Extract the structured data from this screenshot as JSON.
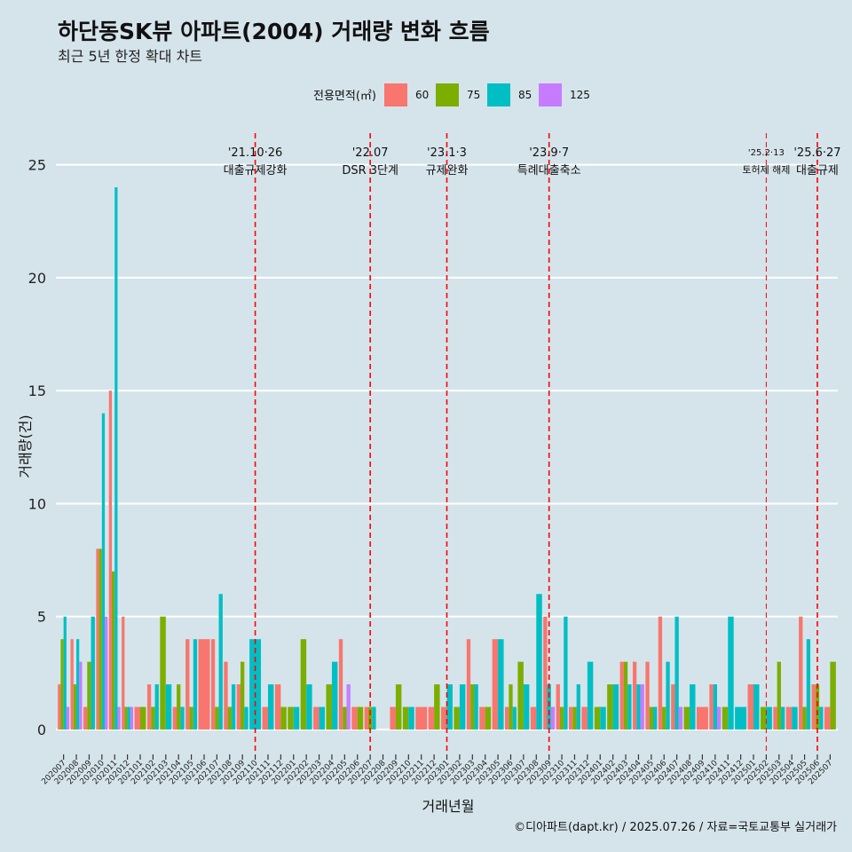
{
  "chart_data": {
    "type": "bar",
    "title": "하단동SK뷰 아파트(2004) 거래량 변화 흐름",
    "subtitle": "최근 5년 한정 확대 차트",
    "xlabel": "거래년월",
    "ylabel": "거래량(건)",
    "caption": "©디아파트(dapt.kr) / 2025.07.26 / 자료=국토교통부 실거래가",
    "ylim": [
      -1.1,
      26.4
    ],
    "yticks": [
      0,
      5,
      10,
      15,
      20,
      25
    ],
    "grid": "horizontal",
    "legend": {
      "title": "전용면적(㎡)",
      "position": "top"
    },
    "categories": [
      "202007",
      "202008",
      "202009",
      "202010",
      "202011",
      "202012",
      "202101",
      "202102",
      "202103",
      "202104",
      "202105",
      "202106",
      "202107",
      "202108",
      "202109",
      "202110",
      "202111",
      "202112",
      "202201",
      "202202",
      "202203",
      "202204",
      "202205",
      "202206",
      "202207",
      "202208",
      "202209",
      "202210",
      "202211",
      "202212",
      "202301",
      "202302",
      "202303",
      "202304",
      "202305",
      "202306",
      "202307",
      "202308",
      "202309",
      "202310",
      "202311",
      "202312",
      "202401",
      "202402",
      "202403",
      "202404",
      "202405",
      "202406",
      "202407",
      "202408",
      "202409",
      "202410",
      "202411",
      "202412",
      "202501",
      "202502",
      "202503",
      "202504",
      "202505",
      "202506",
      "202507"
    ],
    "series": [
      {
        "name": "60",
        "color": "#F8766D",
        "values": [
          2,
          4,
          1,
          8,
          15,
          5,
          1,
          2,
          0,
          1,
          4,
          4,
          4,
          3,
          2,
          0,
          1,
          2,
          0,
          0,
          1,
          0,
          4,
          1,
          1,
          0,
          1,
          0,
          1,
          1,
          1,
          0,
          4,
          1,
          4,
          1,
          0,
          1,
          5,
          2,
          1,
          1,
          0,
          0,
          3,
          3,
          3,
          5,
          2,
          0,
          1,
          2,
          0,
          0,
          2,
          0,
          1,
          1,
          5,
          2,
          1
        ]
      },
      {
        "name": "75",
        "color": "#7CAE00",
        "values": [
          4,
          2,
          3,
          8,
          7,
          1,
          1,
          1,
          5,
          2,
          1,
          0,
          1,
          1,
          3,
          0,
          0,
          1,
          1,
          4,
          0,
          2,
          1,
          1,
          1,
          0,
          2,
          1,
          0,
          2,
          0,
          1,
          2,
          1,
          0,
          2,
          3,
          0,
          0,
          1,
          1,
          0,
          1,
          2,
          3,
          0,
          1,
          1,
          0,
          1,
          0,
          0,
          1,
          0,
          0,
          1,
          3,
          0,
          1,
          2,
          3
        ]
      },
      {
        "name": "85",
        "color": "#00BFC4",
        "values": [
          5,
          4,
          5,
          14,
          24,
          1,
          0,
          2,
          2,
          1,
          4,
          0,
          6,
          2,
          1,
          4,
          2,
          0,
          1,
          2,
          1,
          3,
          0,
          0,
          1,
          0,
          0,
          1,
          0,
          0,
          2,
          2,
          2,
          0,
          4,
          1,
          2,
          6,
          2,
          5,
          2,
          3,
          1,
          2,
          2,
          2,
          1,
          3,
          5,
          2,
          0,
          2,
          5,
          1,
          2,
          1,
          1,
          1,
          4,
          1,
          0
        ]
      },
      {
        "name": "125",
        "color": "#C77CFF",
        "values": [
          1,
          3,
          0,
          5,
          1,
          1,
          0,
          0,
          0,
          0,
          0,
          0,
          0,
          0,
          0,
          0,
          0,
          0,
          0,
          0,
          0,
          0,
          2,
          0,
          0,
          0,
          0,
          0,
          0,
          0,
          0,
          0,
          0,
          0,
          0,
          0,
          0,
          0,
          1,
          0,
          0,
          0,
          0,
          0,
          0,
          2,
          0,
          0,
          1,
          0,
          0,
          1,
          0,
          0,
          0,
          0,
          0,
          0,
          0,
          0,
          0
        ]
      }
    ],
    "annotations": [
      {
        "x": "202110",
        "date": "'21.10·26",
        "label": "대출규제강화",
        "style": "normal"
      },
      {
        "x": "202207",
        "date": "'22.07",
        "label": "DSR 3단계",
        "style": "normal"
      },
      {
        "x": "202301",
        "date": "'23.1·3",
        "label": "규제완화",
        "style": "normal"
      },
      {
        "x": "202309",
        "date": "'23.9·7",
        "label": "특례대출축소",
        "style": "normal"
      },
      {
        "x": "202502",
        "date": "'25.2·13",
        "label": "토허제 해제",
        "style": "small"
      },
      {
        "x": "202506",
        "date": "'25.6·27",
        "label": "대출규제",
        "style": "normal"
      }
    ],
    "annotation_line_color": "#FF0000"
  }
}
